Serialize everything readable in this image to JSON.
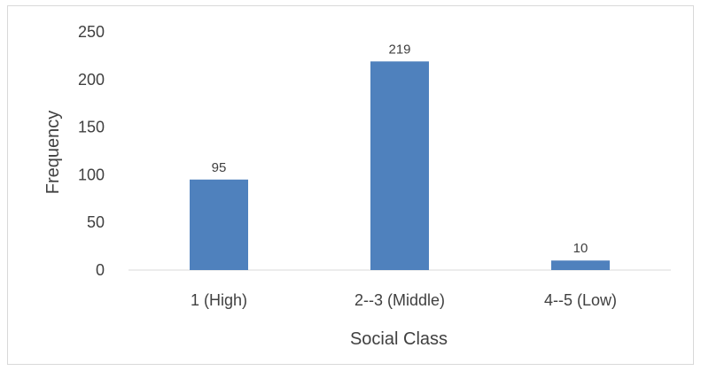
{
  "chart_data": {
    "type": "bar",
    "title": "",
    "xlabel": "Social Class",
    "ylabel": "Frequency",
    "categories": [
      "1 (High)",
      "2--3 (Middle)",
      "4--5 (Low)"
    ],
    "values": [
      95,
      219,
      10
    ],
    "data_labels": [
      "95",
      "219",
      "10"
    ],
    "ylim": [
      0,
      250
    ],
    "yticks": [
      0,
      50,
      100,
      150,
      200,
      250
    ],
    "ytick_labels": [
      "0",
      "50",
      "100",
      "150",
      "200",
      "250"
    ],
    "grid": false,
    "legend": "none",
    "bar_color": "#4f81bd",
    "text_color": "#404040",
    "axis_color": "#d9d9d9"
  }
}
